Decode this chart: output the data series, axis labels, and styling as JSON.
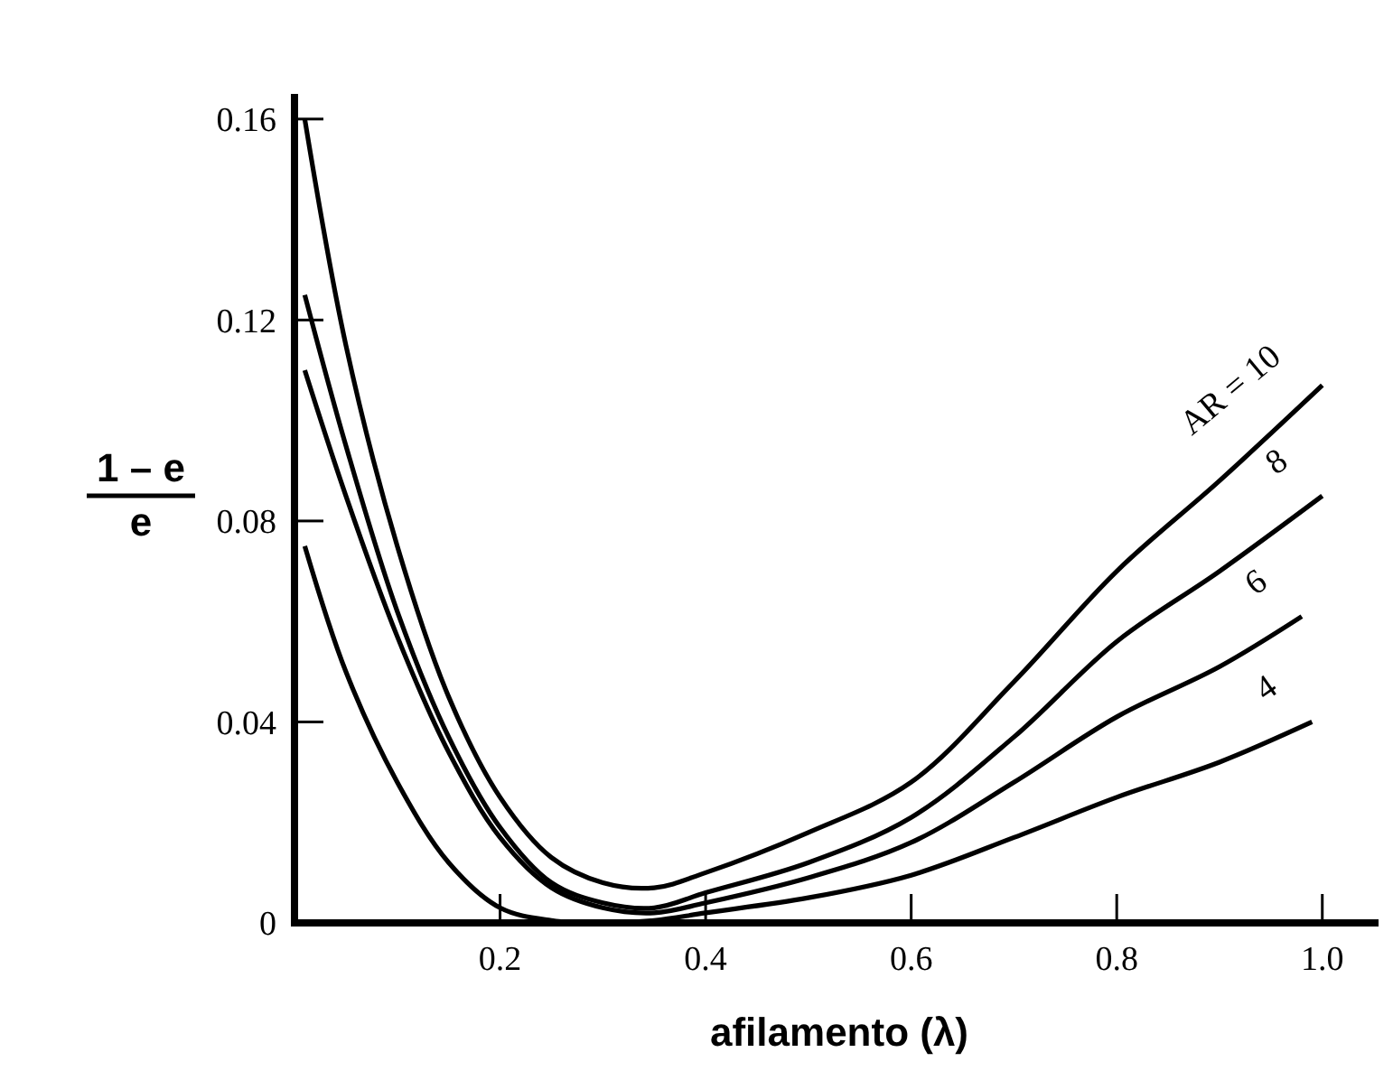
{
  "chart_data": {
    "type": "line",
    "xlabel": "afilamento (λ)",
    "ylabel": "1 – e\ne",
    "xlim": [
      0,
      1.06
    ],
    "ylim": [
      0,
      0.165
    ],
    "xticks": [
      {
        "value": 0,
        "label": null
      },
      0.2,
      0.4,
      0.6,
      0.8,
      {
        "value": 1.0,
        "label": "1.0"
      }
    ],
    "yticks": [
      0,
      0.04,
      0.08,
      0.12,
      0.16
    ],
    "grid": false,
    "marker": "none",
    "line_style": "solid",
    "series": [
      {
        "name": "AR = 10",
        "color": "#000000",
        "x": [
          0.01,
          0.05,
          0.1,
          0.15,
          0.2,
          0.25,
          0.3,
          0.35,
          0.4,
          0.5,
          0.6,
          0.7,
          0.8,
          0.9,
          1.0
        ],
        "values": [
          0.16,
          0.115,
          0.075,
          0.045,
          0.025,
          0.013,
          0.008,
          0.007,
          0.01,
          0.018,
          0.028,
          0.048,
          0.07,
          0.088,
          0.107
        ]
      },
      {
        "name": "8",
        "color": "#000000",
        "x": [
          0.01,
          0.05,
          0.1,
          0.15,
          0.2,
          0.25,
          0.3,
          0.35,
          0.4,
          0.5,
          0.6,
          0.7,
          0.8,
          0.9,
          1.0
        ],
        "values": [
          0.125,
          0.095,
          0.062,
          0.037,
          0.019,
          0.008,
          0.004,
          0.003,
          0.006,
          0.012,
          0.021,
          0.037,
          0.056,
          0.07,
          0.085
        ]
      },
      {
        "name": "6",
        "color": "#000000",
        "x": [
          0.01,
          0.05,
          0.1,
          0.15,
          0.2,
          0.25,
          0.3,
          0.35,
          0.4,
          0.5,
          0.6,
          0.7,
          0.8,
          0.9,
          0.98
        ],
        "values": [
          0.11,
          0.085,
          0.057,
          0.034,
          0.017,
          0.007,
          0.003,
          0.002,
          0.004,
          0.009,
          0.016,
          0.028,
          0.041,
          0.051,
          0.061
        ]
      },
      {
        "name": "4",
        "color": "#000000",
        "x": [
          0.01,
          0.05,
          0.1,
          0.15,
          0.2,
          0.25,
          0.3,
          0.35,
          0.4,
          0.5,
          0.6,
          0.7,
          0.8,
          0.9,
          0.99
        ],
        "values": [
          0.075,
          0.05,
          0.028,
          0.012,
          0.003,
          0.0005,
          0,
          0.0005,
          0.002,
          0.005,
          0.0095,
          0.017,
          0.025,
          0.032,
          0.04
        ]
      }
    ]
  }
}
